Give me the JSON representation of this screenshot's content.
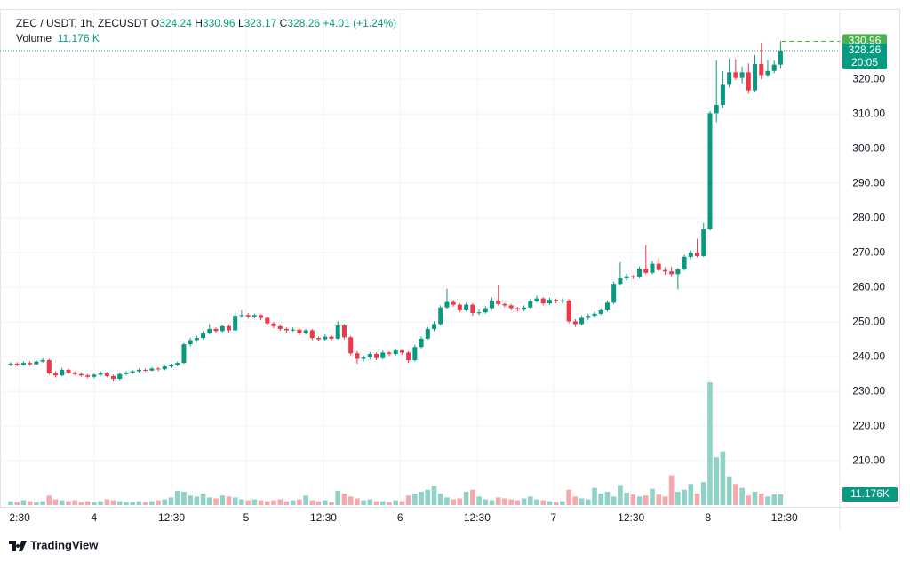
{
  "chart_data": {
    "type": "candlestick",
    "header": {
      "symbol": "ZEC / USDT, 1h, ZECUSDT",
      "ohlc_labels": [
        "O",
        "H",
        "L",
        "C"
      ],
      "change": "+4.01 (+1.24%)",
      "volume_title": "Volume",
      "volume_value": "11.176 K"
    },
    "countdown": "20:05",
    "volume_tag": "11.176K",
    "logo": "TradingView",
    "up_color": "#089981",
    "down_color": "#f23645",
    "up_volume_color": "#8fd3c8",
    "down_volume_color": "#f8a8ab",
    "grid": true,
    "ylim": [
      196.7,
      340.3
    ],
    "yticks": [
      {
        "value": 210,
        "label": "210.00"
      },
      {
        "value": 220,
        "label": "220.00"
      },
      {
        "value": 230,
        "label": "230.00"
      },
      {
        "value": 240,
        "label": "240.00"
      },
      {
        "value": 250,
        "label": "250.00"
      },
      {
        "value": 260,
        "label": "260.00"
      },
      {
        "value": 270,
        "label": "270.00"
      },
      {
        "value": 280,
        "label": "280.00"
      },
      {
        "value": 290,
        "label": "290.00"
      },
      {
        "value": 300,
        "label": "300.00"
      },
      {
        "value": 310,
        "label": "310.00"
      },
      {
        "value": 320,
        "label": "320.00"
      }
    ],
    "xticks": [
      {
        "value": 1.4,
        "label": "2:30"
      },
      {
        "value": 13,
        "label": "4"
      },
      {
        "value": 25.07,
        "label": "12:30"
      },
      {
        "value": 36.7,
        "label": "5"
      },
      {
        "value": 48.75,
        "label": "12:30"
      },
      {
        "value": 60.7,
        "label": "6"
      },
      {
        "value": 72.7,
        "label": "12:30"
      },
      {
        "value": 84.6,
        "label": "7"
      },
      {
        "value": 96.7,
        "label": "12:30"
      },
      {
        "value": 108.7,
        "label": "8"
      },
      {
        "value": 120.6,
        "label": "12:30"
      }
    ],
    "ohlc": [
      [
        237.6,
        238.4,
        237.2,
        238.0
      ],
      [
        238.0,
        238.4,
        237.2,
        237.6
      ],
      [
        237.6,
        238.6,
        237.4,
        238.2
      ],
      [
        238.2,
        238.6,
        237.4,
        237.8
      ],
      [
        237.8,
        239.0,
        237.6,
        238.6
      ],
      [
        238.6,
        239.6,
        238.2,
        239.0
      ],
      [
        239.0,
        239.4,
        234.8,
        235.2
      ],
      [
        235.2,
        235.8,
        234.0,
        234.6
      ],
      [
        234.6,
        236.8,
        234.4,
        236.2
      ],
      [
        236.2,
        236.6,
        235.0,
        235.4
      ],
      [
        235.4,
        235.8,
        234.6,
        235.0
      ],
      [
        235.0,
        235.4,
        234.2,
        234.6
      ],
      [
        234.6,
        235.0,
        233.8,
        234.2
      ],
      [
        234.2,
        235.2,
        233.8,
        234.8
      ],
      [
        234.8,
        235.8,
        234.4,
        235.2
      ],
      [
        235.2,
        235.6,
        234.0,
        234.4
      ],
      [
        234.4,
        234.8,
        232.8,
        233.6
      ],
      [
        233.6,
        235.4,
        233.2,
        235.0
      ],
      [
        235.0,
        235.8,
        234.6,
        235.4
      ],
      [
        235.4,
        236.2,
        235.0,
        235.8
      ],
      [
        235.8,
        236.6,
        235.4,
        236.2
      ],
      [
        236.2,
        236.6,
        235.6,
        236.0
      ],
      [
        236.0,
        237.0,
        235.8,
        236.6
      ],
      [
        236.6,
        237.0,
        235.8,
        236.4
      ],
      [
        236.4,
        237.6,
        236.0,
        237.2
      ],
      [
        237.2,
        238.0,
        236.8,
        237.6
      ],
      [
        237.6,
        238.6,
        237.2,
        238.2
      ],
      [
        238.2,
        244.0,
        238.0,
        243.6
      ],
      [
        243.6,
        245.4,
        243.0,
        244.8
      ],
      [
        244.8,
        246.0,
        244.2,
        245.4
      ],
      [
        245.4,
        247.4,
        245.0,
        246.8
      ],
      [
        246.8,
        249.4,
        246.4,
        248.0
      ],
      [
        248.0,
        248.4,
        246.8,
        247.4
      ],
      [
        247.4,
        249.2,
        247.0,
        248.8
      ],
      [
        248.8,
        249.2,
        247.0,
        247.6
      ],
      [
        247.6,
        252.6,
        247.4,
        251.8
      ],
      [
        251.8,
        253.4,
        251.2,
        252.0
      ],
      [
        252.0,
        252.6,
        251.0,
        251.6
      ],
      [
        251.6,
        252.4,
        251.0,
        252.0
      ],
      [
        252.0,
        252.2,
        250.6,
        251.2
      ],
      [
        251.2,
        251.6,
        249.0,
        249.6
      ],
      [
        249.6,
        250.0,
        248.2,
        248.8
      ],
      [
        248.8,
        249.2,
        247.4,
        248.0
      ],
      [
        248.0,
        248.4,
        247.0,
        247.6
      ],
      [
        247.6,
        248.4,
        247.2,
        247.8
      ],
      [
        247.8,
        248.2,
        246.2,
        246.8
      ],
      [
        246.8,
        248.0,
        246.4,
        247.6
      ],
      [
        247.6,
        248.0,
        244.8,
        245.4
      ],
      [
        245.4,
        245.8,
        244.4,
        245.0
      ],
      [
        245.0,
        246.4,
        244.6,
        245.8
      ],
      [
        245.8,
        246.2,
        244.6,
        245.2
      ],
      [
        245.2,
        250.2,
        245.0,
        249.0
      ],
      [
        249.0,
        249.4,
        245.0,
        245.6
      ],
      [
        245.6,
        246.0,
        240.4,
        241.0
      ],
      [
        241.0,
        241.6,
        238.0,
        239.4
      ],
      [
        239.4,
        240.4,
        238.6,
        239.8
      ],
      [
        239.8,
        241.4,
        239.2,
        240.8
      ],
      [
        240.8,
        241.2,
        239.0,
        239.6
      ],
      [
        239.6,
        241.8,
        239.2,
        241.2
      ],
      [
        241.2,
        241.6,
        240.2,
        240.8
      ],
      [
        240.8,
        242.4,
        240.4,
        241.8
      ],
      [
        241.8,
        242.0,
        240.6,
        241.2
      ],
      [
        241.2,
        241.6,
        238.2,
        239.0
      ],
      [
        239.0,
        243.4,
        238.6,
        242.8
      ],
      [
        242.8,
        245.8,
        242.4,
        245.2
      ],
      [
        245.2,
        248.6,
        244.8,
        248.0
      ],
      [
        248.0,
        250.2,
        247.4,
        249.4
      ],
      [
        249.4,
        254.8,
        249.0,
        254.2
      ],
      [
        254.2,
        259.6,
        253.8,
        255.8
      ],
      [
        255.8,
        256.4,
        254.4,
        255.0
      ],
      [
        255.0,
        255.4,
        252.8,
        253.4
      ],
      [
        253.4,
        255.6,
        253.0,
        255.0
      ],
      [
        255.0,
        255.4,
        251.8,
        252.6
      ],
      [
        252.6,
        253.6,
        252.0,
        252.8
      ],
      [
        252.8,
        254.6,
        252.4,
        254.0
      ],
      [
        254.0,
        257.0,
        253.6,
        256.2
      ],
      [
        256.2,
        260.8,
        254.8,
        255.2
      ],
      [
        255.2,
        255.6,
        254.2,
        254.8
      ],
      [
        254.8,
        255.2,
        253.4,
        254.0
      ],
      [
        254.0,
        254.4,
        253.0,
        253.6
      ],
      [
        253.6,
        254.8,
        253.2,
        254.2
      ],
      [
        254.2,
        256.6,
        253.8,
        256.0
      ],
      [
        256.0,
        257.6,
        255.6,
        256.8
      ],
      [
        256.8,
        257.2,
        254.8,
        255.4
      ],
      [
        255.4,
        257.0,
        255.0,
        256.4
      ],
      [
        256.4,
        256.8,
        255.4,
        256.0
      ],
      [
        256.0,
        256.8,
        255.4,
        256.2
      ],
      [
        256.2,
        256.6,
        249.6,
        250.2
      ],
      [
        250.2,
        250.8,
        248.6,
        249.4
      ],
      [
        249.4,
        251.8,
        249.0,
        251.2
      ],
      [
        251.2,
        252.4,
        250.6,
        251.8
      ],
      [
        251.8,
        253.0,
        251.2,
        252.4
      ],
      [
        252.4,
        254.0,
        252.0,
        253.4
      ],
      [
        253.4,
        256.2,
        253.0,
        255.6
      ],
      [
        255.6,
        261.6,
        255.2,
        261.0
      ],
      [
        261.0,
        267.2,
        260.6,
        262.6
      ],
      [
        262.6,
        264.0,
        262.0,
        263.2
      ],
      [
        263.2,
        263.6,
        262.4,
        263.0
      ],
      [
        263.0,
        266.0,
        262.6,
        265.4
      ],
      [
        265.4,
        272.2,
        263.8,
        264.2
      ],
      [
        264.2,
        267.6,
        263.8,
        266.8
      ],
      [
        266.8,
        268.4,
        264.6,
        265.0
      ],
      [
        265.0,
        265.8,
        263.6,
        264.6
      ],
      [
        264.6,
        266.0,
        263.2,
        263.8
      ],
      [
        263.8,
        265.6,
        259.4,
        265.2
      ],
      [
        265.2,
        269.4,
        264.8,
        268.8
      ],
      [
        268.8,
        270.6,
        268.2,
        270.0
      ],
      [
        270.0,
        274.0,
        268.6,
        269.0
      ],
      [
        269.0,
        278.6,
        268.8,
        276.8
      ],
      [
        276.8,
        310.8,
        276.4,
        310.2
      ],
      [
        310.2,
        325.4,
        307.6,
        312.6
      ],
      [
        312.6,
        322.4,
        311.8,
        318.4
      ],
      [
        318.4,
        326.0,
        317.6,
        322.0
      ],
      [
        322.0,
        325.8,
        319.8,
        320.4
      ],
      [
        320.4,
        323.6,
        318.8,
        322.0
      ],
      [
        322.0,
        324.6,
        315.8,
        316.8
      ],
      [
        316.8,
        327.0,
        316.2,
        324.4
      ],
      [
        324.4,
        330.6,
        320.0,
        321.2
      ],
      [
        321.2,
        325.6,
        320.6,
        322.4
      ],
      [
        322.4,
        325.4,
        321.8,
        324.24
      ],
      [
        324.24,
        330.96,
        323.17,
        328.26
      ]
    ],
    "volume": [
      4,
      3,
      5,
      4,
      3,
      4,
      10,
      6,
      5,
      4,
      5,
      3,
      4,
      3,
      4,
      6,
      5,
      4,
      3,
      3,
      4,
      3,
      4,
      5,
      6,
      8,
      15,
      14,
      10,
      9,
      12,
      8,
      7,
      10,
      9,
      8,
      6,
      5,
      6,
      5,
      4,
      5,
      6,
      4,
      5,
      6,
      10,
      5,
      4,
      5,
      3,
      15,
      12,
      9,
      7,
      5,
      6,
      4,
      4,
      3,
      5,
      4,
      10,
      12,
      14,
      16,
      20,
      12,
      8,
      6,
      7,
      14,
      16,
      9,
      6,
      5,
      8,
      7,
      6,
      5,
      7,
      9,
      6,
      5,
      4,
      3,
      4,
      16,
      9,
      7,
      6,
      18,
      12,
      14,
      9,
      21,
      13,
      11,
      9,
      10,
      17,
      11,
      9,
      31,
      14,
      16,
      22,
      12,
      24,
      128,
      50,
      56,
      30,
      22,
      18,
      10,
      14,
      12,
      9,
      11,
      11.176
    ]
  }
}
